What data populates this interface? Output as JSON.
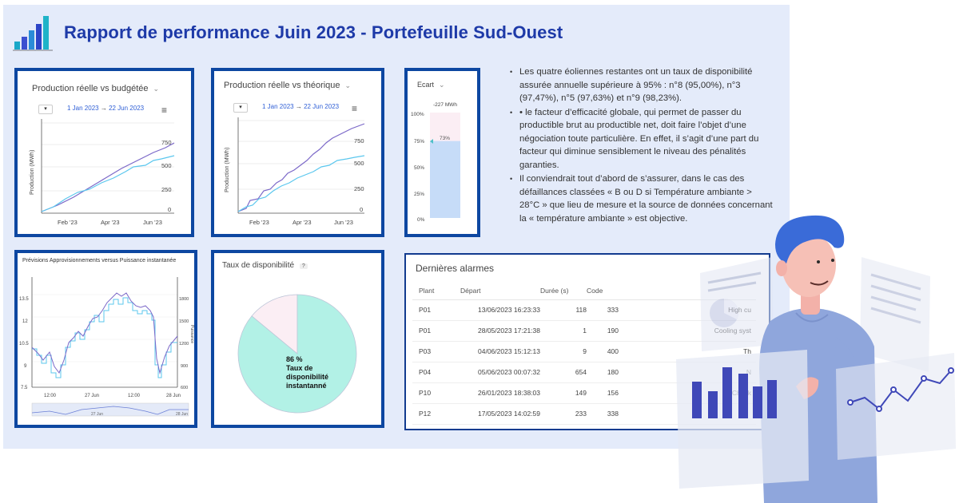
{
  "header": {
    "title": "Rapport de performance Juin 2023 - Portefeuille Sud-Ouest"
  },
  "panel1": {
    "title": "Production réelle vs budgétée",
    "range_start": "1 Jan 2023",
    "range_end": "22 Jun 2023",
    "arrow": "→",
    "ylabel": "Production (MWh)",
    "yticks": [
      "750",
      "500",
      "250",
      "0"
    ],
    "xticks": [
      "Feb '23",
      "Apr '23",
      "Jun '23"
    ]
  },
  "panel2": {
    "title": "Production réelle vs théorique",
    "range_start": "1 Jan 2023",
    "range_end": "22 Jun 2023",
    "arrow": "→",
    "ylabel": "Production (MWh)",
    "yticks": [
      "750",
      "500",
      "250",
      "0"
    ],
    "xticks": [
      "Feb '23",
      "Apr '23",
      "Jun '23"
    ]
  },
  "panel3": {
    "title": "Ecart",
    "value_label": "-227 MWh",
    "bar_label": "73%",
    "yticks": [
      "100%",
      "75%",
      "50%",
      "25%",
      "0%"
    ],
    "fill_fraction": 0.73
  },
  "panel4": {
    "title": "Prévisions Approvisionnements versus Puissance instantanée",
    "yticks_left": [
      "13.5",
      "12",
      "10.5",
      "9",
      "7.5"
    ],
    "yticks_right": [
      "1800",
      "1500",
      "1200",
      "900",
      "600"
    ],
    "ylabel_right": "Puissance",
    "xticks": [
      "12:00",
      "27 Jun",
      "12:00",
      "28 Jun"
    ],
    "nav_labels": [
      "27 Jun",
      "28 Jun"
    ]
  },
  "panel5": {
    "title": "Taux de disponibilité",
    "help": "?",
    "pie_value_label": "86 %",
    "pie_caption": "Taux de disponibilité instantanné",
    "fraction": 0.86
  },
  "bullets": [
    "Les quatre éoliennes restantes ont un taux de disponibilité assurée annuelle supérieure à 95% : n°8 (95,00%), n°3 (97,47%), n°5 (97,63%) et n°9 (98,23%).",
    "• le facteur d’efficacité globale, qui permet de passer du productible brut au productible net, doit faire l’objet d’une négociation toute particulière. En effet, il s’agit d’une part du facteur qui diminue sensiblement le niveau des pénalités garanties.",
    "Il conviendrait tout d’abord de s’assurer, dans le cas des défaillances classées « B ou D si Température ambiante > 28°C » que lieu de mesure et la source de données concernant la « température ambiante » est objective."
  ],
  "alarms": {
    "title": "Dernières alarmes",
    "headers": [
      "Plant",
      "Départ",
      "Durée (s)",
      "Code",
      ""
    ],
    "rows": [
      [
        "P01",
        "13/06/2023 16:23:33",
        "118",
        "333",
        "High cu"
      ],
      [
        "P01",
        "28/05/2023 17:21:38",
        "1",
        "190",
        "Cooling syst"
      ],
      [
        "P03",
        "04/06/2023 15:12:13",
        "9",
        "400",
        "Th"
      ],
      [
        "P04",
        "05/06/2023 00:07:32",
        "654",
        "180",
        "N"
      ],
      [
        "P10",
        "26/01/2023 18:38:03",
        "149",
        "156",
        "Chock"
      ],
      [
        "P12",
        "17/05/2023 14:02:59",
        "233",
        "338",
        ""
      ]
    ]
  },
  "colors": {
    "accent": "#1e3aa8",
    "border": "#0d47a1",
    "series_purple": "#7b68c8",
    "series_cyan": "#5bc7ee",
    "pie_main": "#b2f1e6",
    "pie_rest": "#fbeef4"
  }
}
